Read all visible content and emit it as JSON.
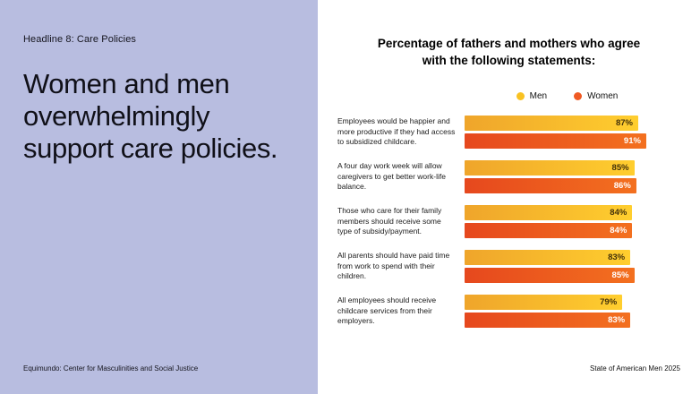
{
  "left_panel": {
    "eyebrow": "Headline 8: Care Policies",
    "headline": "Women and men overwhelmingly support care policies.",
    "footer": "Equimundo: Center for Masculinities and Social Justice"
  },
  "right_panel": {
    "footer": "State of American Men 2025"
  },
  "colors": {
    "left_panel_bg": "#b8bde0",
    "men_accent": "#f9c222",
    "women_accent": "#f05a23"
  },
  "chart_data": {
    "type": "bar",
    "orientation": "horizontal",
    "title": "Percentage of fathers and mothers who agree with the following statements:",
    "legend_position": "top",
    "grid": false,
    "xlim": [
      0,
      100
    ],
    "value_suffix": "%",
    "categories": [
      "Employees would be happier and more productive if they had access to subsidized childcare.",
      "A four day work week will allow caregivers to get better work-life balance.",
      "Those who care for their family members should receive some type of subsidy/payment.",
      "All parents should have paid time from work to spend with their children.",
      "All employees should receive childcare services from their employers."
    ],
    "series": [
      {
        "name": "Men",
        "accent": "#f9c222",
        "color_start": "#efa52b",
        "color_end": "#ffce2e",
        "text_color": "#43310a",
        "values": [
          87,
          85,
          84,
          83,
          79
        ]
      },
      {
        "name": "Women",
        "accent": "#f05a23",
        "color_start": "#e6481e",
        "color_end": "#f3701f",
        "text_color": "#ffffff",
        "values": [
          91,
          86,
          84,
          85,
          83
        ]
      }
    ]
  }
}
